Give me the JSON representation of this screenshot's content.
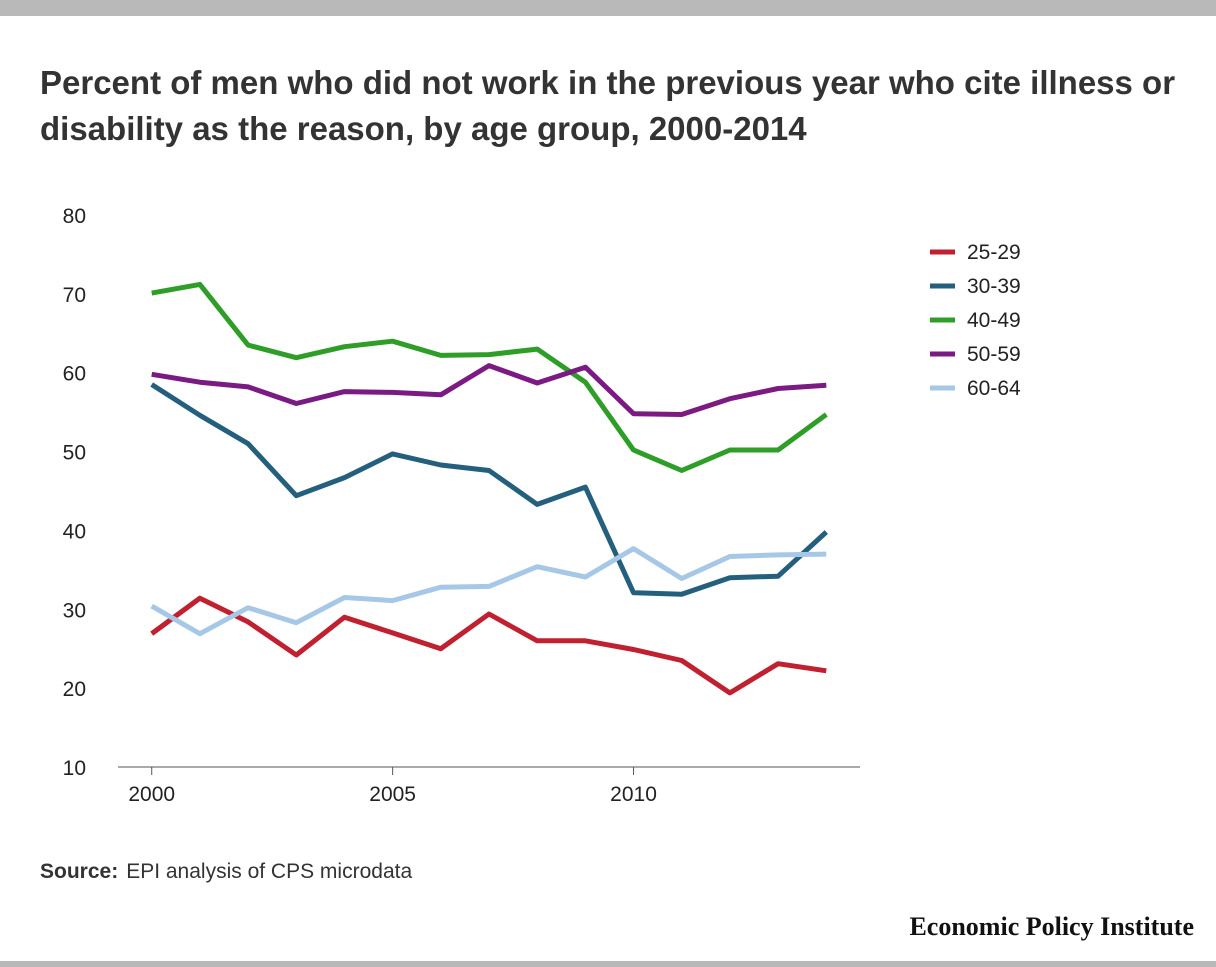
{
  "title": "Percent of men who did not work in the previous year who cite illness or disability as the reason, by age group, 2000-2014",
  "source": {
    "label": "Source:",
    "text": "EPI analysis of CPS microdata"
  },
  "brand": "Economic Policy Institute",
  "chart_data": {
    "type": "line",
    "x": [
      2000,
      2001,
      2002,
      2003,
      2004,
      2005,
      2006,
      2007,
      2008,
      2009,
      2010,
      2011,
      2012,
      2013,
      2014
    ],
    "xlim": [
      1999.3,
      2014.7
    ],
    "ylim": [
      10,
      80
    ],
    "yticks": [
      10,
      20,
      30,
      40,
      50,
      60,
      70,
      80
    ],
    "xticks": [
      2000,
      2005,
      2010
    ],
    "legend_position": "top-right",
    "grid": false,
    "series": [
      {
        "name": "25-29",
        "color": "#c0202f",
        "values": [
          26.9,
          31.4,
          28.4,
          24.2,
          29.0,
          27.0,
          25.0,
          29.4,
          26.0,
          26.0,
          24.9,
          23.5,
          19.4,
          23.1,
          22.2
        ]
      },
      {
        "name": "30-39",
        "color": "#245f7e",
        "values": [
          58.5,
          54.6,
          51.0,
          44.4,
          46.7,
          49.7,
          48.3,
          47.6,
          43.3,
          45.5,
          32.1,
          31.9,
          34.0,
          34.2,
          39.8
        ]
      },
      {
        "name": "40-49",
        "color": "#2f9e28",
        "values": [
          70.1,
          71.2,
          63.5,
          61.9,
          63.3,
          64.0,
          62.2,
          62.3,
          63.0,
          58.8,
          50.2,
          47.6,
          50.2,
          50.2,
          54.7
        ]
      },
      {
        "name": "50-59",
        "color": "#7a1a82",
        "values": [
          59.8,
          58.8,
          58.2,
          56.1,
          57.6,
          57.5,
          57.2,
          60.9,
          58.7,
          60.7,
          54.8,
          54.7,
          56.7,
          58.0,
          58.4
        ]
      },
      {
        "name": "60-64",
        "color": "#a6c8e6",
        "values": [
          30.4,
          26.9,
          30.2,
          28.3,
          31.5,
          31.1,
          32.8,
          32.9,
          35.4,
          34.1,
          37.7,
          33.9,
          36.7,
          36.9,
          37.0
        ]
      }
    ]
  }
}
